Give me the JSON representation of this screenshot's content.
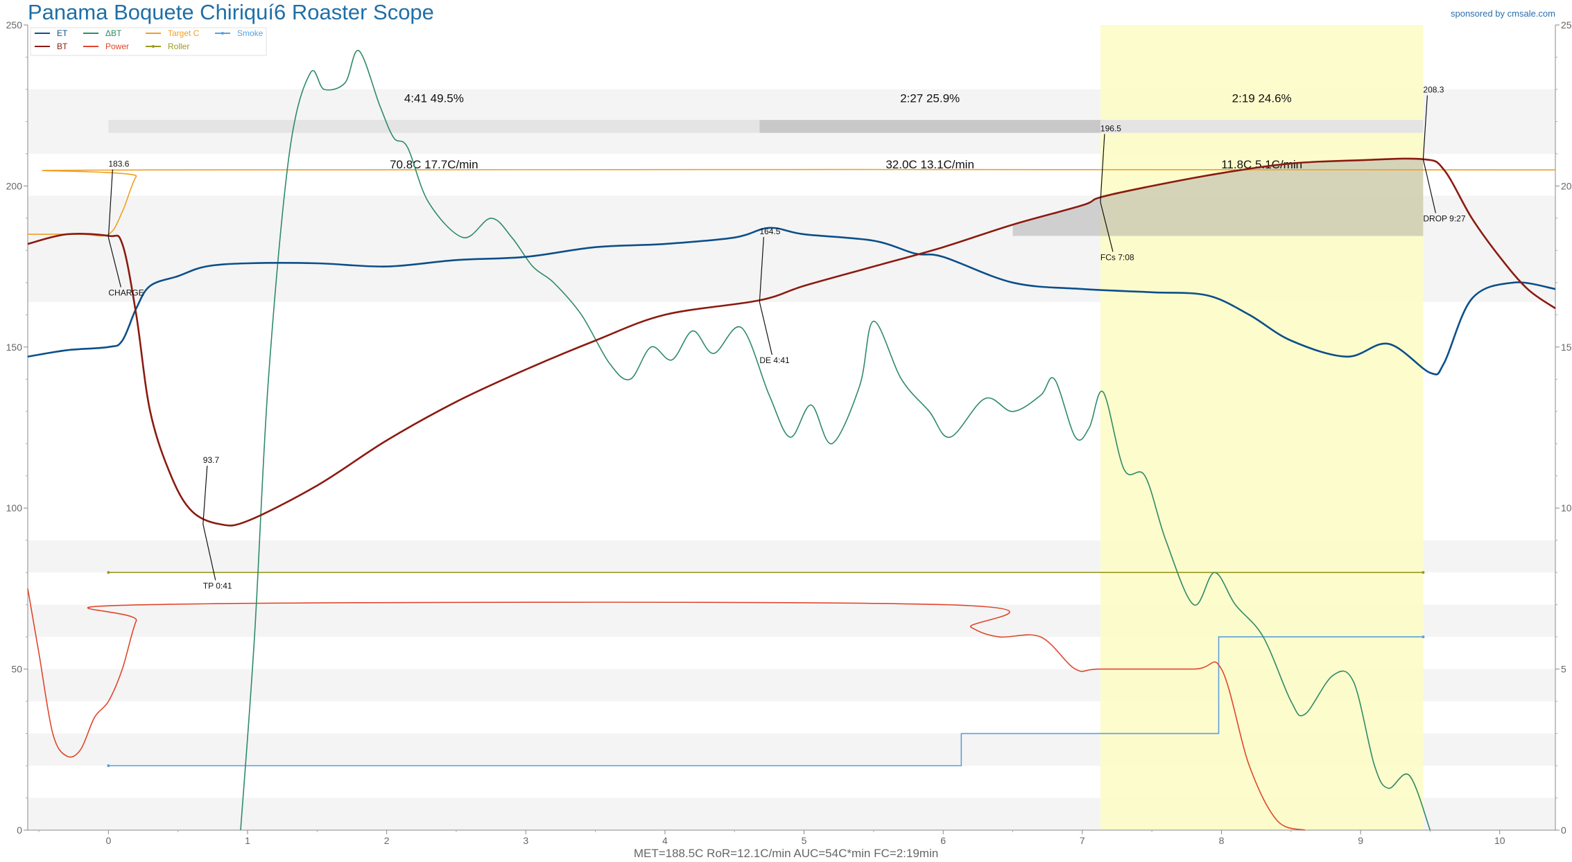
{
  "title": "Panama Boquete Chiriquí6 Roaster Scope",
  "sponsor": "sponsored by cmsale.com",
  "stats_line": "MET=188.5C   RoR=12.1C/min   AUC=54C*min   FC=2:19min",
  "colors": {
    "ET": "#0b4f8a",
    "BT": "#8b1a10",
    "dBT": "#2e8b66",
    "Power": "#e0452b",
    "TargetC": "#f0a020",
    "Roller": "#9a9a20",
    "Smoke": "#5aa0dc",
    "development_band": "#fdfcc8",
    "title": "#1f6fa6"
  },
  "chart_data": {
    "type": "line",
    "xlim": [
      -0.58,
      10.4
    ],
    "ylim": [
      0,
      250
    ],
    "y2lim": [
      0,
      25
    ],
    "x_ticks": [
      0,
      1,
      2,
      3,
      4,
      5,
      6,
      7,
      8,
      9,
      10
    ],
    "y_ticks": [
      0,
      50,
      100,
      150,
      200,
      250
    ],
    "y2_ticks": [
      0,
      5,
      10,
      15,
      20,
      25
    ],
    "grid": false,
    "legend_position": "top-left",
    "legend": [
      {
        "name": "ET",
        "key": "ET"
      },
      {
        "name": "BT",
        "key": "BT"
      },
      {
        "name": "ΔBT",
        "key": "dBT"
      },
      {
        "name": "Power",
        "key": "Power"
      },
      {
        "name": "Target C",
        "key": "TargetC"
      },
      {
        "name": "Roller",
        "key": "Roller"
      },
      {
        "name": "Smoke",
        "key": "Smoke"
      }
    ],
    "series": [
      {
        "name": "ET",
        "key": "ET",
        "axis": "left",
        "points": [
          [
            -0.58,
            147
          ],
          [
            -0.3,
            149
          ],
          [
            0,
            150
          ],
          [
            0.1,
            152
          ],
          [
            0.2,
            162
          ],
          [
            0.3,
            169
          ],
          [
            0.5,
            172
          ],
          [
            0.7,
            175
          ],
          [
            1.0,
            176
          ],
          [
            1.5,
            176
          ],
          [
            2.0,
            175
          ],
          [
            2.5,
            177
          ],
          [
            3.0,
            178
          ],
          [
            3.5,
            181
          ],
          [
            4.0,
            182
          ],
          [
            4.5,
            184
          ],
          [
            4.75,
            187
          ],
          [
            5.0,
            185
          ],
          [
            5.5,
            183
          ],
          [
            5.8,
            179
          ],
          [
            6.0,
            178
          ],
          [
            6.5,
            170
          ],
          [
            7.0,
            168
          ],
          [
            7.5,
            167
          ],
          [
            7.9,
            166
          ],
          [
            8.2,
            160
          ],
          [
            8.5,
            152
          ],
          [
            8.9,
            147
          ],
          [
            9.2,
            151
          ],
          [
            9.5,
            142
          ],
          [
            9.6,
            145
          ],
          [
            9.8,
            165
          ],
          [
            10.1,
            170
          ],
          [
            10.4,
            168
          ]
        ]
      },
      {
        "name": "BT",
        "key": "BT",
        "axis": "left",
        "points": [
          [
            -0.58,
            182
          ],
          [
            -0.3,
            185
          ],
          [
            0,
            184.5
          ],
          [
            0.1,
            182
          ],
          [
            0.2,
            160
          ],
          [
            0.3,
            130
          ],
          [
            0.45,
            110
          ],
          [
            0.6,
            99
          ],
          [
            0.8,
            95
          ],
          [
            1.0,
            96
          ],
          [
            1.5,
            107
          ],
          [
            2.0,
            121
          ],
          [
            2.5,
            133
          ],
          [
            3.0,
            143
          ],
          [
            3.5,
            152
          ],
          [
            4.0,
            160
          ],
          [
            4.68,
            164.5
          ],
          [
            5.0,
            169
          ],
          [
            5.5,
            175
          ],
          [
            6.0,
            181
          ],
          [
            6.5,
            188
          ],
          [
            7.0,
            194
          ],
          [
            7.13,
            196.5
          ],
          [
            7.5,
            200
          ],
          [
            8.0,
            204
          ],
          [
            8.5,
            207
          ],
          [
            9.0,
            208
          ],
          [
            9.45,
            208.3
          ],
          [
            9.6,
            205
          ],
          [
            9.8,
            190
          ],
          [
            10.0,
            178
          ],
          [
            10.2,
            168
          ],
          [
            10.4,
            162
          ]
        ]
      },
      {
        "name": "ΔBT",
        "key": "dBT",
        "axis": "right",
        "points": [
          [
            0.95,
            0
          ],
          [
            1.05,
            6
          ],
          [
            1.15,
            14
          ],
          [
            1.3,
            21
          ],
          [
            1.45,
            23.5
          ],
          [
            1.55,
            23
          ],
          [
            1.7,
            23.2
          ],
          [
            1.8,
            24.2
          ],
          [
            1.95,
            22.5
          ],
          [
            2.05,
            21.5
          ],
          [
            2.15,
            21.2
          ],
          [
            2.3,
            19.5
          ],
          [
            2.55,
            18.4
          ],
          [
            2.75,
            19
          ],
          [
            2.9,
            18.4
          ],
          [
            3.05,
            17.5
          ],
          [
            3.2,
            17
          ],
          [
            3.4,
            16
          ],
          [
            3.6,
            14.5
          ],
          [
            3.75,
            14
          ],
          [
            3.9,
            15
          ],
          [
            4.05,
            14.6
          ],
          [
            4.2,
            15.5
          ],
          [
            4.35,
            14.8
          ],
          [
            4.55,
            15.6
          ],
          [
            4.75,
            13.5
          ],
          [
            4.9,
            12.2
          ],
          [
            5.05,
            13.2
          ],
          [
            5.2,
            12
          ],
          [
            5.4,
            13.8
          ],
          [
            5.5,
            15.8
          ],
          [
            5.7,
            14
          ],
          [
            5.9,
            13
          ],
          [
            6.05,
            12.2
          ],
          [
            6.3,
            13.4
          ],
          [
            6.5,
            13
          ],
          [
            6.7,
            13.5
          ],
          [
            6.8,
            14
          ],
          [
            6.95,
            12.2
          ],
          [
            7.05,
            12.5
          ],
          [
            7.15,
            13.6
          ],
          [
            7.3,
            11.2
          ],
          [
            7.45,
            11
          ],
          [
            7.6,
            9
          ],
          [
            7.8,
            7
          ],
          [
            7.95,
            8
          ],
          [
            8.1,
            7
          ],
          [
            8.3,
            6
          ],
          [
            8.5,
            4
          ],
          [
            8.6,
            3.6
          ],
          [
            8.8,
            4.8
          ],
          [
            8.95,
            4.6
          ],
          [
            9.1,
            2
          ],
          [
            9.2,
            1.3
          ],
          [
            9.35,
            1.7
          ],
          [
            9.5,
            0
          ]
        ]
      },
      {
        "name": "Power",
        "key": "Power",
        "axis": "right",
        "points": [
          [
            -0.58,
            7.5
          ],
          [
            -0.5,
            5.5
          ],
          [
            -0.4,
            3
          ],
          [
            -0.3,
            2.3
          ],
          [
            -0.2,
            2.5
          ],
          [
            -0.1,
            3.5
          ],
          [
            0,
            4
          ],
          [
            0.1,
            5
          ],
          [
            0.2,
            6.5
          ],
          [
            0.3,
            7
          ],
          [
            6.0,
            7
          ],
          [
            6.2,
            6.3
          ],
          [
            6.4,
            6
          ],
          [
            6.7,
            6
          ],
          [
            6.95,
            5
          ],
          [
            7.13,
            5
          ],
          [
            7.8,
            5
          ],
          [
            8.0,
            5
          ],
          [
            8.2,
            2
          ],
          [
            8.4,
            0.3
          ],
          [
            8.6,
            0
          ]
        ]
      },
      {
        "name": "Target C",
        "key": "TargetC",
        "axis": "left",
        "points": [
          [
            -0.58,
            185
          ],
          [
            -0.2,
            185
          ],
          [
            0,
            185
          ],
          [
            0.1,
            192
          ],
          [
            0.2,
            203
          ],
          [
            0.3,
            205
          ],
          [
            10.4,
            205
          ]
        ]
      },
      {
        "name": "Roller",
        "key": "Roller",
        "axis": "right",
        "points": [
          [
            0,
            8
          ],
          [
            9.45,
            8
          ]
        ]
      },
      {
        "name": "Smoke",
        "key": "Smoke",
        "axis": "right",
        "step": true,
        "points": [
          [
            0,
            2
          ],
          [
            6.13,
            2
          ],
          [
            6.13,
            3
          ],
          [
            7.98,
            3
          ],
          [
            7.98,
            6
          ],
          [
            9.45,
            6
          ]
        ]
      }
    ],
    "development_band": {
      "start": 7.13,
      "end": 9.45
    },
    "phase_bar": {
      "segments": [
        {
          "start": 0,
          "end": 4.68,
          "label": "4:41  49.5%",
          "color": "#e4e4e4"
        },
        {
          "start": 4.68,
          "end": 7.13,
          "label": "2:27  25.9%",
          "color": "#c8c8c8"
        },
        {
          "start": 7.13,
          "end": 9.45,
          "label": "2:19  24.6%",
          "color": "#e4e4e4"
        }
      ],
      "ror_labels": [
        "70.8C  17.7C/min",
        "32.0C  13.1C/min",
        "11.8C  5.1C/min"
      ]
    },
    "events": [
      {
        "label": "CHARGE",
        "value": "183.6",
        "x": 0,
        "y": 184
      },
      {
        "label": "TP 0:41",
        "value": "93.7",
        "x": 0.68,
        "y": 95
      },
      {
        "label": "DE 4:41",
        "value": "164.5",
        "x": 4.68,
        "y": 164
      },
      {
        "label": "FCs 7:08",
        "value": "196.5",
        "x": 7.13,
        "y": 195
      },
      {
        "label": "DROP 9:27",
        "value": "208.3",
        "x": 9.45,
        "y": 208.3
      }
    ],
    "bg_bands": [
      [
        0,
        10
      ],
      [
        20,
        30
      ],
      [
        40,
        50
      ],
      [
        60,
        70
      ],
      [
        80,
        90
      ],
      [
        164,
        197
      ],
      [
        210,
        230
      ]
    ]
  }
}
